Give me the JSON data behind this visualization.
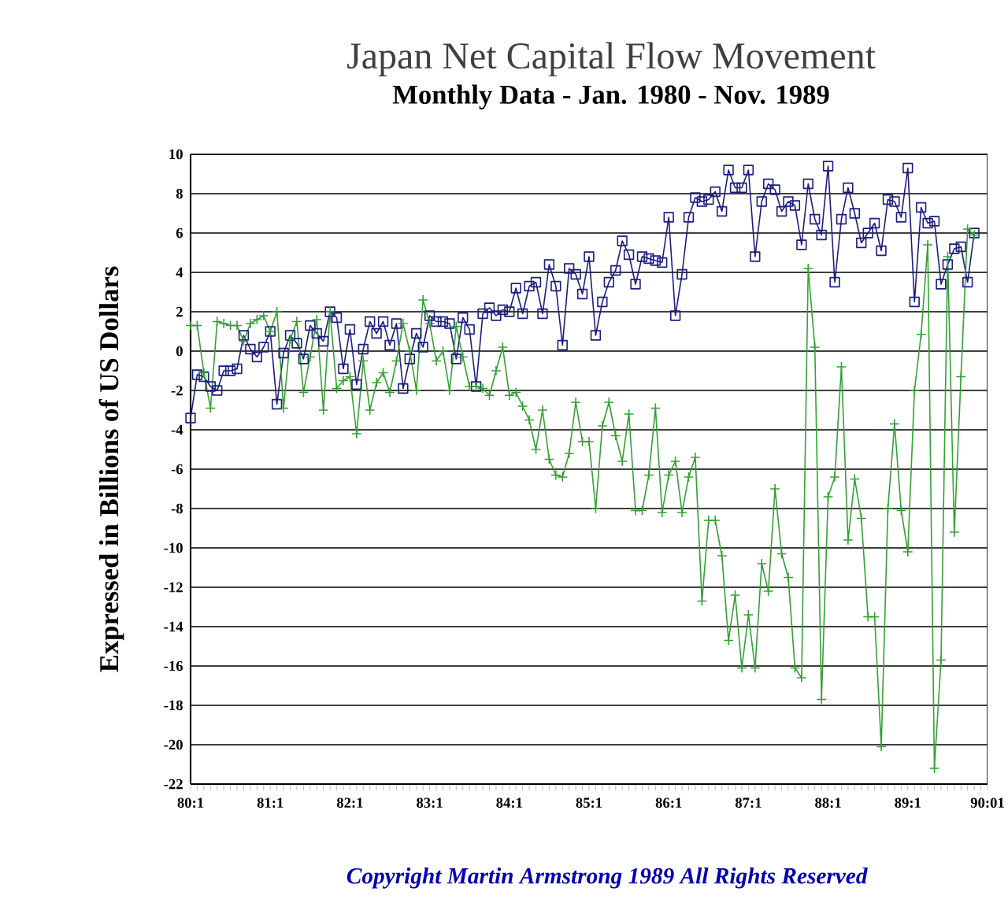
{
  "chart_data": {
    "type": "line",
    "title": "Japan Net Capital Flow Movement",
    "subtitle": "Monthly Data - Jan. 1980 - Nov. 1989",
    "ylabel": "Expressed in Billions of US Dollars",
    "annotations": [
      "Copyright Martin Armstrong 1989 All Rights Reserved"
    ],
    "categories": [
      "80:1",
      null,
      null,
      null,
      null,
      null,
      null,
      null,
      null,
      null,
      null,
      null,
      "81:1",
      null,
      null,
      null,
      null,
      null,
      null,
      null,
      null,
      null,
      null,
      null,
      "82:1",
      null,
      null,
      null,
      null,
      null,
      null,
      null,
      null,
      null,
      null,
      null,
      "83:1",
      null,
      null,
      null,
      null,
      null,
      null,
      null,
      null,
      null,
      null,
      null,
      "84:1",
      null,
      null,
      null,
      null,
      null,
      null,
      null,
      null,
      null,
      null,
      null,
      "85:1",
      null,
      null,
      null,
      null,
      null,
      null,
      null,
      null,
      null,
      null,
      null,
      "86:1",
      null,
      null,
      null,
      null,
      null,
      null,
      null,
      null,
      null,
      null,
      null,
      "87:1",
      null,
      null,
      null,
      null,
      null,
      null,
      null,
      null,
      null,
      null,
      null,
      "88:1",
      null,
      null,
      null,
      null,
      null,
      null,
      null,
      null,
      null,
      null,
      null,
      "89:1",
      null,
      null,
      null,
      null,
      null,
      null,
      null,
      null,
      null,
      null,
      null,
      "90:01"
    ],
    "series": [
      {
        "color": "#1c1c80",
        "marker": "square",
        "values": [
          -3.4,
          -1.2,
          -1.3,
          -1.8,
          -2.0,
          -1.0,
          -1.0,
          -0.9,
          0.8,
          0.1,
          -0.3,
          0.2,
          1.0,
          -2.7,
          -0.1,
          0.8,
          0.4,
          -0.4,
          1.3,
          0.9,
          0.5,
          2.0,
          1.7,
          -0.9,
          1.1,
          -1.7,
          0.1,
          1.5,
          0.9,
          1.5,
          0.3,
          1.4,
          -1.9,
          -0.4,
          0.9,
          0.2,
          1.8,
          1.5,
          1.5,
          1.4,
          -0.4,
          1.7,
          1.1,
          -1.8,
          1.9,
          2.2,
          1.8,
          2.1,
          2.0,
          3.2,
          1.9,
          3.3,
          3.5,
          1.9,
          4.4,
          3.3,
          0.3,
          4.2,
          3.9,
          2.9,
          4.8,
          0.8,
          2.5,
          3.5,
          4.1,
          5.6,
          4.9,
          3.4,
          4.8,
          4.7,
          4.6,
          4.5,
          6.8,
          1.8,
          3.9,
          6.8,
          7.8,
          7.6,
          7.7,
          8.1,
          7.1,
          9.2,
          8.3,
          8.3,
          9.2,
          4.8,
          7.6,
          8.5,
          8.2,
          7.1,
          7.6,
          7.4,
          5.4,
          8.5,
          6.7,
          5.9,
          9.4,
          3.5,
          6.7,
          8.3,
          7.0,
          5.5,
          6.0,
          6.5,
          5.1,
          7.7,
          7.6,
          6.8,
          9.3,
          2.5,
          7.3,
          6.5,
          6.6,
          3.4,
          4.4,
          5.2,
          5.3,
          3.5,
          6.0,
          null,
          null
        ]
      },
      {
        "color": "#33a133",
        "marker": "cross",
        "values": [
          1.3,
          1.3,
          -1.1,
          -2.9,
          1.5,
          1.4,
          1.3,
          1.3,
          0.5,
          1.4,
          1.6,
          1.8,
          1.0,
          2.0,
          -2.9,
          0.6,
          1.5,
          -2.1,
          -0.3,
          1.6,
          -3.0,
          2.0,
          -1.9,
          -1.5,
          -1.3,
          -4.2,
          -0.5,
          -3.0,
          -1.6,
          -1.1,
          -2.1,
          -0.5,
          1.4,
          0.0,
          -2.0,
          2.6,
          1.4,
          -0.5,
          0.0,
          -2.0,
          1.25,
          -0.3,
          -1.8,
          -1.8,
          -1.9,
          -2.25,
          -1.0,
          0.2,
          -2.25,
          -2.1,
          -2.8,
          -3.5,
          -5.0,
          -3.0,
          -5.5,
          -6.3,
          -6.4,
          -5.2,
          -2.6,
          -4.6,
          -4.6,
          -8.0,
          -3.8,
          -2.6,
          -4.3,
          -5.6,
          -3.2,
          -8.1,
          -8.1,
          -6.3,
          -2.9,
          -8.2,
          -6.3,
          -5.6,
          -8.2,
          -6.4,
          -5.4,
          -12.7,
          -8.6,
          -8.6,
          -10.4,
          -14.7,
          -12.4,
          -16.1,
          -13.4,
          -16.1,
          -10.8,
          -12.2,
          -7.0,
          -10.3,
          -11.5,
          -16.1,
          -16.6,
          4.2,
          0.2,
          -17.7,
          -7.4,
          -6.4,
          -0.8,
          -9.6,
          -6.5,
          -8.5,
          -13.5,
          -13.5,
          -20.1,
          -8.0,
          -3.7,
          -8.1,
          -10.2,
          -2.0,
          0.85,
          5.4,
          -21.2,
          -15.7,
          4.8,
          -9.2,
          -1.3,
          6.2,
          5.9,
          null,
          null
        ]
      }
    ],
    "ylim": [
      -22,
      10
    ],
    "yticks": [
      -22,
      -20,
      -18,
      -16,
      -14,
      -12,
      -10,
      -8,
      -6,
      -4,
      -2,
      0,
      2,
      4,
      6,
      8,
      10
    ],
    "grid": "y",
    "line_style": "solid"
  }
}
